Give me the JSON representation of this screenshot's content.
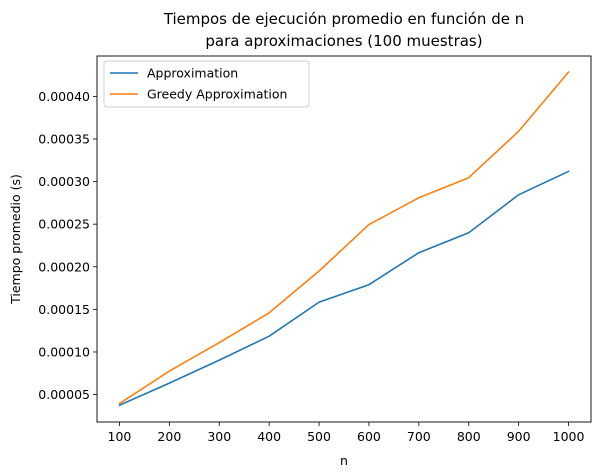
{
  "chart_data": {
    "type": "line",
    "title": "Tiempos de ejecución promedio en función de n",
    "subtitle": "para aproximaciones (100 muestras)",
    "xlabel": "n",
    "ylabel": "Tiempo promedio (s)",
    "x": [
      100,
      200,
      300,
      400,
      500,
      600,
      700,
      800,
      900,
      1000
    ],
    "x_ticks": [
      "100",
      "200",
      "300",
      "400",
      "500",
      "600",
      "700",
      "800",
      "900",
      "1000"
    ],
    "y_ticks": [
      {
        "value": 5e-05,
        "label": "0.00005"
      },
      {
        "value": 0.0001,
        "label": "0.00010"
      },
      {
        "value": 0.00015,
        "label": "0.00015"
      },
      {
        "value": 0.0002,
        "label": "0.00020"
      },
      {
        "value": 0.00025,
        "label": "0.00025"
      },
      {
        "value": 0.0003,
        "label": "0.00030"
      },
      {
        "value": 0.00035,
        "label": "0.00035"
      },
      {
        "value": 0.0004,
        "label": "0.00040"
      }
    ],
    "xlim": [
      55,
      1045
    ],
    "ylim": [
      1.78e-05,
      0.0004474
    ],
    "grid": false,
    "legend_position": "top-left",
    "series": [
      {
        "name": "Approximation",
        "color": "#1f77b4",
        "values": [
          3.75e-05,
          6.35e-05,
          9.05e-05,
          0.0001185,
          0.0001585,
          0.000179,
          0.0002165,
          0.00024,
          0.0002845,
          0.000312
        ]
      },
      {
        "name": "Greedy Approximation",
        "color": "#ff7f0e",
        "values": [
          3.95e-05,
          7.75e-05,
          0.000111,
          0.000146,
          0.000195,
          0.0002495,
          0.000281,
          0.0003045,
          0.000359,
          0.0004285
        ]
      }
    ]
  }
}
